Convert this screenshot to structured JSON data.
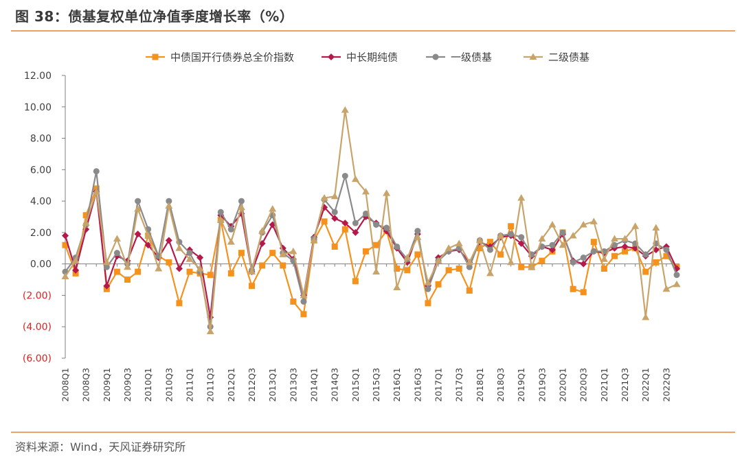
{
  "title": "图 38：债基复权单位净值季度增长率（%）",
  "source": "资料来源：Wind，天风证券研究所",
  "colors": {
    "accent_rule": "#f0a060",
    "negative_tick": "#e02020"
  },
  "chart_data": {
    "type": "line",
    "title": "图 38：债基复权单位净值季度增长率（%）",
    "xlabel": "",
    "ylabel": "",
    "ylim": [
      -6,
      12
    ],
    "y_ticks": [
      "12.00",
      "10.00",
      "8.00",
      "6.00",
      "4.00",
      "2.00",
      "0.00",
      "(2.00)",
      "(4.00)",
      "(6.00)"
    ],
    "y_tick_values": [
      12,
      10,
      8,
      6,
      4,
      2,
      0,
      -2,
      -4,
      -6
    ],
    "x_tick_labels": [
      "2008Q1",
      "2008Q3",
      "2009Q1",
      "2009Q3",
      "2010Q1",
      "2010Q3",
      "2011Q1",
      "2011Q3",
      "2012Q1",
      "2012Q3",
      "2013Q1",
      "2013Q3",
      "2014Q1",
      "2014Q3",
      "2015Q1",
      "2015Q3",
      "2016Q1",
      "2016Q3",
      "2017Q1",
      "2017Q3",
      "2018Q1",
      "2018Q3",
      "2019Q1",
      "2019Q3",
      "2020Q1",
      "2020Q3",
      "2021Q1",
      "2021Q3",
      "2022Q1",
      "2022Q3"
    ],
    "categories": [
      "2008Q1",
      "2008Q2",
      "2008Q3",
      "2008Q4",
      "2009Q1",
      "2009Q2",
      "2009Q3",
      "2009Q4",
      "2010Q1",
      "2010Q2",
      "2010Q3",
      "2010Q4",
      "2011Q1",
      "2011Q2",
      "2011Q3",
      "2011Q4",
      "2012Q1",
      "2012Q2",
      "2012Q3",
      "2012Q4",
      "2013Q1",
      "2013Q2",
      "2013Q3",
      "2013Q4",
      "2014Q1",
      "2014Q2",
      "2014Q3",
      "2014Q4",
      "2015Q1",
      "2015Q2",
      "2015Q3",
      "2015Q4",
      "2016Q1",
      "2016Q2",
      "2016Q3",
      "2016Q4",
      "2017Q1",
      "2017Q2",
      "2017Q3",
      "2017Q4",
      "2018Q1",
      "2018Q2",
      "2018Q3",
      "2018Q4",
      "2019Q1",
      "2019Q2",
      "2019Q3",
      "2019Q4",
      "2020Q1",
      "2020Q2",
      "2020Q3",
      "2020Q4",
      "2021Q1",
      "2021Q2",
      "2021Q3",
      "2021Q4",
      "2022Q1",
      "2022Q2",
      "2022Q3",
      "2022Q4"
    ],
    "legend_position": "top",
    "grid": false,
    "series": [
      {
        "name": "中债国开行债券总全价指数",
        "color": "#f5921e",
        "marker": "square",
        "values": [
          1.2,
          -0.6,
          3.1,
          4.8,
          -1.6,
          -0.5,
          -1.0,
          -0.5,
          1.8,
          0.5,
          0.1,
          -2.5,
          -0.5,
          -0.6,
          -0.7,
          2.8,
          -0.6,
          0.7,
          -1.4,
          -0.1,
          0.7,
          -0.1,
          -2.4,
          -3.2,
          1.5,
          2.7,
          1.1,
          2.2,
          -1.1,
          0.8,
          1.2,
          2.1,
          -0.3,
          -0.4,
          0.6,
          -2.5,
          -1.3,
          -0.4,
          -0.3,
          -1.7,
          1.0,
          1.4,
          0.6,
          2.4,
          -0.2,
          -0.2,
          0.2,
          0.8,
          2.0,
          -1.6,
          -1.8,
          1.4,
          -0.3,
          0.5,
          0.8,
          1.0,
          -0.5,
          0.1,
          0.5,
          -0.2
        ]
      },
      {
        "name": "中长期纯债",
        "color": "#b5194a",
        "marker": "diamond",
        "values": [
          1.8,
          -0.4,
          2.2,
          4.6,
          -1.4,
          0.5,
          0.2,
          1.9,
          1.2,
          0.4,
          1.5,
          -0.3,
          0.9,
          0.4,
          -3.4,
          3.1,
          2.4,
          3.2,
          -0.5,
          1.3,
          2.5,
          1.0,
          0.3,
          -2.0,
          1.7,
          3.6,
          2.9,
          2.6,
          2.0,
          3.0,
          2.6,
          2.1,
          1.0,
          0.1,
          1.9,
          -1.4,
          0.4,
          0.8,
          0.9,
          0.1,
          1.4,
          1.1,
          1.7,
          1.8,
          1.3,
          0.5,
          1.1,
          0.9,
          1.9,
          0.2,
          0.0,
          0.8,
          0.7,
          1.0,
          1.1,
          1.0,
          0.5,
          0.9,
          1.1,
          -0.3
        ]
      },
      {
        "name": "一级债基",
        "color": "#8a8a8a",
        "marker": "circle",
        "values": [
          -0.5,
          0.4,
          2.5,
          5.9,
          -0.2,
          0.7,
          0.0,
          4.0,
          2.2,
          0.5,
          4.0,
          1.4,
          0.7,
          -0.5,
          -4.0,
          3.3,
          2.2,
          4.0,
          -0.4,
          2.0,
          3.1,
          0.7,
          0.2,
          -2.4,
          1.6,
          4.1,
          3.3,
          5.6,
          2.6,
          3.2,
          2.5,
          2.3,
          1.1,
          0.3,
          2.1,
          -1.6,
          0.2,
          0.8,
          1.0,
          -0.2,
          1.5,
          0.9,
          1.8,
          1.9,
          1.7,
          0.6,
          1.1,
          1.2,
          2.0,
          0.1,
          0.4,
          0.8,
          0.8,
          1.2,
          1.5,
          1.3,
          0.6,
          1.3,
          0.9,
          -0.7
        ]
      },
      {
        "name": "二级债基",
        "color": "#c8a46a",
        "marker": "triangle",
        "values": [
          -0.8,
          0.2,
          2.6,
          4.6,
          0.1,
          1.6,
          -0.2,
          3.5,
          1.8,
          -0.3,
          3.7,
          1.0,
          0.3,
          -0.3,
          -4.3,
          2.8,
          1.4,
          3.6,
          -0.5,
          2.1,
          3.5,
          0.6,
          0.8,
          -2.0,
          1.5,
          4.2,
          4.3,
          9.8,
          5.4,
          4.6,
          -0.5,
          4.5,
          -1.5,
          0.4,
          1.7,
          -1.2,
          0.2,
          1.0,
          1.3,
          0.1,
          1.5,
          -0.6,
          1.8,
          0.1,
          4.2,
          -0.2,
          1.6,
          2.5,
          1.2,
          1.8,
          2.5,
          2.7,
          0.3,
          1.6,
          1.6,
          2.4,
          -3.4,
          2.3,
          -1.6,
          -1.3
        ]
      }
    ]
  }
}
